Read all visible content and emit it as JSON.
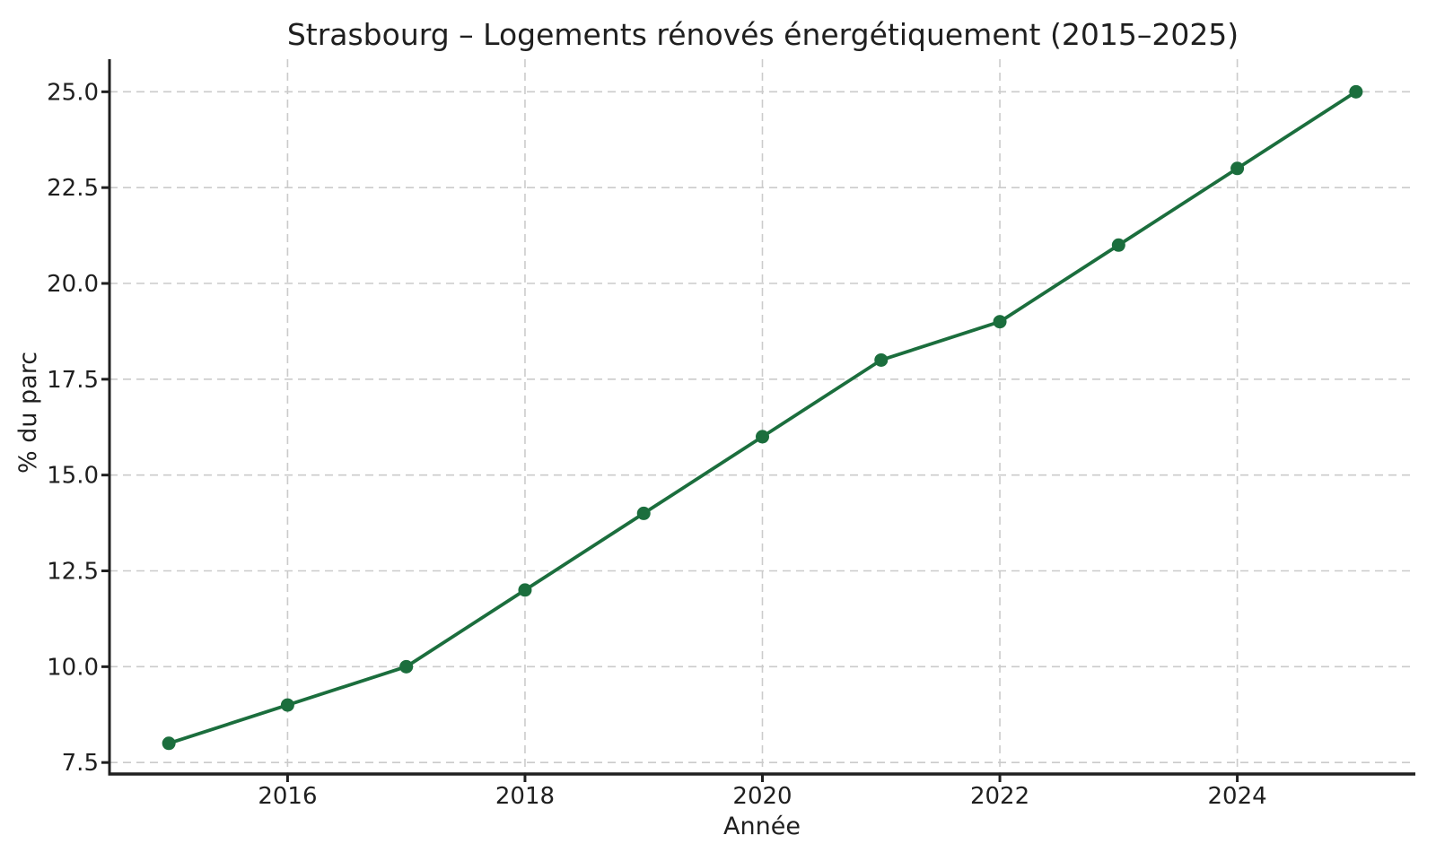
{
  "chart_data": {
    "type": "line",
    "title": "Strasbourg – Logements rénovés énergétiquement (2015–2025)",
    "xlabel": "Année",
    "ylabel": "% du parc",
    "x": [
      2015,
      2016,
      2017,
      2018,
      2019,
      2020,
      2021,
      2022,
      2023,
      2024,
      2025
    ],
    "values": [
      8,
      9,
      10,
      12,
      14,
      16,
      18,
      19,
      21,
      23,
      25
    ],
    "xlim": [
      2014.5,
      2025.5
    ],
    "ylim": [
      7.2,
      25.85
    ],
    "xticks": [
      2016,
      2018,
      2020,
      2022,
      2024
    ],
    "yticks": [
      7.5,
      10,
      12.5,
      15,
      17.5,
      20,
      22.5,
      25
    ],
    "y_tick_decimals": 1,
    "grid": true,
    "grid_style": "dashed",
    "legend": false,
    "line_color": "#1b6e3d",
    "marker": "circle",
    "marker_color": "#1b6e3d",
    "grid_color": "#cbcbcb",
    "axis_color": "#1f1f1f",
    "background": "#ffffff"
  }
}
